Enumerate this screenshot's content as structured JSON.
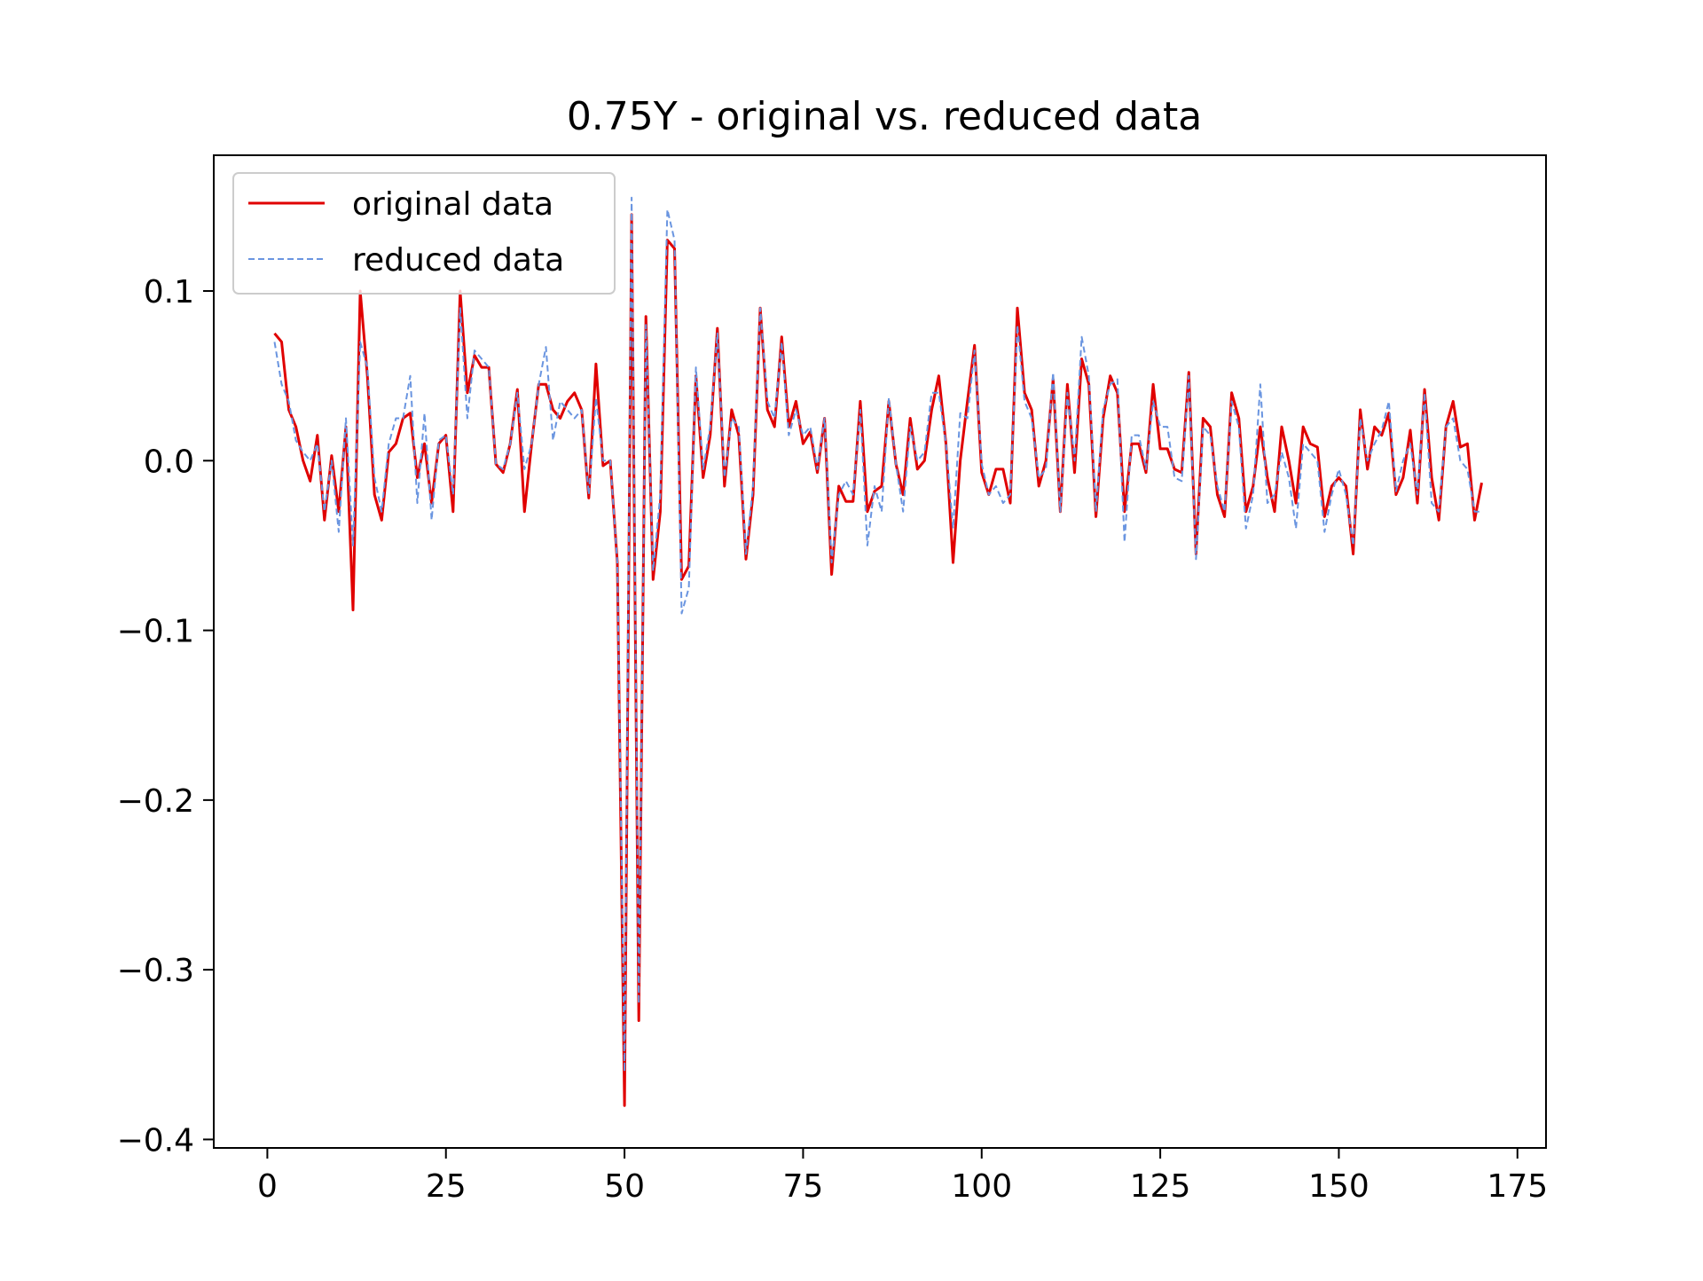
{
  "chart_data": {
    "type": "line",
    "title": "0.75Y - original vs. reduced data",
    "xlabel": "",
    "ylabel": "",
    "xlim": [
      -7.5,
      179
    ],
    "ylim": [
      -0.405,
      0.18
    ],
    "xticks": [
      0,
      25,
      50,
      75,
      100,
      125,
      150,
      175
    ],
    "yticks": [
      0.1,
      0.0,
      -0.1,
      -0.2,
      -0.3,
      -0.4
    ],
    "xtick_labels": [
      "0",
      "25",
      "50",
      "75",
      "100",
      "125",
      "150",
      "175"
    ],
    "ytick_labels": [
      "0.1",
      "0.0",
      "−0.1",
      "−0.2",
      "−0.3",
      "−0.4"
    ],
    "grid": false,
    "legend_position": "upper-left",
    "x_start": 1,
    "series": [
      {
        "name": "original data",
        "color": "#e00000",
        "style": "solid",
        "values": [
          0.075,
          0.07,
          0.03,
          0.02,
          0.0,
          -0.012,
          0.015,
          -0.035,
          0.003,
          -0.03,
          0.02,
          -0.088,
          0.1,
          0.05,
          -0.02,
          -0.035,
          0.005,
          0.01,
          0.025,
          0.028,
          -0.01,
          0.01,
          -0.025,
          0.01,
          0.015,
          -0.03,
          0.1,
          0.04,
          0.062,
          0.055,
          0.055,
          -0.002,
          -0.007,
          0.01,
          0.042,
          -0.03,
          0.01,
          0.045,
          0.045,
          0.03,
          0.025,
          0.035,
          0.04,
          0.03,
          -0.022,
          0.057,
          -0.003,
          0.0,
          -0.06,
          -0.38,
          0.145,
          -0.33,
          0.085,
          -0.07,
          -0.03,
          0.13,
          0.125,
          -0.07,
          -0.062,
          0.05,
          -0.01,
          0.015,
          0.078,
          -0.015,
          0.03,
          0.015,
          -0.058,
          -0.02,
          0.09,
          0.03,
          0.02,
          0.073,
          0.02,
          0.035,
          0.01,
          0.017,
          -0.007,
          0.025,
          -0.067,
          -0.015,
          -0.024,
          -0.024,
          0.035,
          -0.03,
          -0.018,
          -0.015,
          0.035,
          -0.002,
          -0.02,
          0.025,
          -0.005,
          0.0,
          0.03,
          0.05,
          0.01,
          -0.06,
          0.0,
          0.035,
          0.068,
          -0.007,
          -0.02,
          -0.005,
          -0.005,
          -0.025,
          0.09,
          0.04,
          0.03,
          -0.015,
          0.0,
          0.048,
          -0.03,
          0.045,
          -0.007,
          0.06,
          0.045,
          -0.033,
          0.025,
          0.05,
          0.04,
          -0.03,
          0.01,
          0.01,
          -0.007,
          0.045,
          0.007,
          0.007,
          -0.005,
          -0.007,
          0.052,
          -0.055,
          0.025,
          0.02,
          -0.02,
          -0.033,
          0.04,
          0.025,
          -0.03,
          -0.015,
          0.02,
          -0.01,
          -0.03,
          0.02,
          0.0,
          -0.025,
          0.02,
          0.01,
          0.008,
          -0.033,
          -0.015,
          -0.01,
          -0.015,
          -0.055,
          0.03,
          -0.005,
          0.02,
          0.015,
          0.028,
          -0.02,
          -0.01,
          0.018,
          -0.025,
          0.042,
          -0.01,
          -0.035,
          0.02,
          0.035,
          0.008,
          0.01,
          -0.035,
          -0.013
        ]
      },
      {
        "name": "reduced data",
        "color": "#6a95e0",
        "style": "dashed",
        "values": [
          0.07,
          0.045,
          0.035,
          0.012,
          0.005,
          0.0,
          0.01,
          -0.03,
          0.0,
          -0.042,
          0.025,
          -0.05,
          0.07,
          0.055,
          -0.01,
          -0.03,
          0.01,
          0.025,
          0.025,
          0.05,
          -0.025,
          0.028,
          -0.035,
          0.012,
          0.015,
          -0.02,
          0.09,
          0.025,
          0.065,
          0.06,
          0.055,
          -0.002,
          -0.005,
          0.01,
          0.04,
          -0.005,
          0.01,
          0.045,
          0.067,
          0.012,
          0.035,
          0.03,
          0.025,
          0.03,
          -0.02,
          0.037,
          0.0,
          0.0,
          -0.06,
          -0.36,
          0.155,
          -0.32,
          0.08,
          -0.065,
          -0.02,
          0.148,
          0.13,
          -0.09,
          -0.075,
          0.055,
          -0.005,
          0.02,
          0.075,
          -0.01,
          0.025,
          0.02,
          -0.055,
          -0.015,
          0.09,
          0.035,
          0.025,
          0.07,
          0.015,
          0.03,
          0.015,
          0.02,
          -0.005,
          0.025,
          -0.06,
          -0.02,
          -0.012,
          -0.02,
          0.03,
          -0.05,
          -0.015,
          -0.03,
          0.037,
          -0.002,
          -0.03,
          0.02,
          0.0,
          0.005,
          0.04,
          0.04,
          0.01,
          -0.04,
          0.028,
          0.025,
          0.065,
          -0.002,
          -0.02,
          -0.015,
          -0.025,
          -0.02,
          0.08,
          0.035,
          0.025,
          -0.01,
          -0.005,
          0.052,
          -0.03,
          0.04,
          0.0,
          0.073,
          0.05,
          -0.03,
          0.03,
          0.045,
          0.048,
          -0.048,
          0.015,
          0.015,
          -0.005,
          0.035,
          0.02,
          0.02,
          -0.01,
          -0.012,
          0.05,
          -0.058,
          0.02,
          0.015,
          -0.015,
          -0.03,
          0.035,
          0.02,
          -0.04,
          -0.02,
          0.045,
          -0.025,
          -0.02,
          0.005,
          -0.01,
          -0.04,
          0.01,
          0.005,
          0.0,
          -0.042,
          -0.02,
          -0.005,
          -0.02,
          -0.05,
          0.025,
          0.0,
          0.01,
          0.018,
          0.035,
          -0.018,
          0.0,
          0.01,
          -0.02,
          0.04,
          -0.025,
          -0.03,
          0.02,
          0.025,
          0.0,
          -0.005,
          -0.03,
          -0.03
        ]
      }
    ]
  }
}
